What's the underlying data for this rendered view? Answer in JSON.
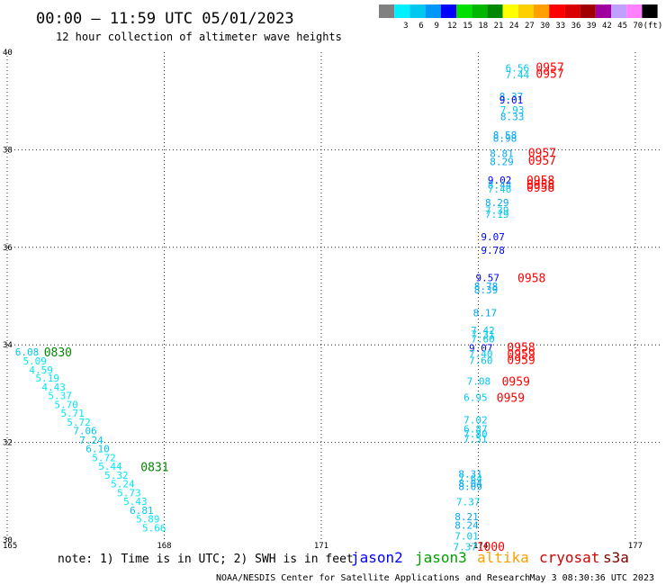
{
  "title": "00:00 – 11:59 UTC 05/01/2023",
  "subtitle": "12 hour collection of altimeter wave heights",
  "note": "note: 1) Time is in UTC; 2) SWH is in feet",
  "credit_left": "NOAA/NESDIS Center for Satellite Applications and Research",
  "credit_right": "May  3 08:30:36 UTC 2023",
  "colorbar": {
    "unit": "(ft)",
    "bins": [
      {
        "color": "#808080",
        "label": ""
      },
      {
        "color": "#00f0ff",
        "label": "3"
      },
      {
        "color": "#00c8f0",
        "label": "6"
      },
      {
        "color": "#0098f8",
        "label": "9"
      },
      {
        "color": "#0000ff",
        "label": "12"
      },
      {
        "color": "#00e000",
        "label": "15"
      },
      {
        "color": "#00b800",
        "label": "18"
      },
      {
        "color": "#008800",
        "label": "21"
      },
      {
        "color": "#ffff00",
        "label": "24"
      },
      {
        "color": "#ffd000",
        "label": "27"
      },
      {
        "color": "#ffa000",
        "label": "30"
      },
      {
        "color": "#ff0000",
        "label": "33"
      },
      {
        "color": "#d80000",
        "label": "36"
      },
      {
        "color": "#a00000",
        "label": "39"
      },
      {
        "color": "#a000a0",
        "label": "42"
      },
      {
        "color": "#c0a0ff",
        "label": "45"
      },
      {
        "color": "#ff80ff",
        "label": "70"
      },
      {
        "color": "#000000",
        "label": ""
      }
    ]
  },
  "satellites": [
    {
      "name": "jason2",
      "color": "#0000ff"
    },
    {
      "name": "jason3",
      "color": "#00a000"
    },
    {
      "name": "altika",
      "color": "#ffa000"
    },
    {
      "name": "cryosat",
      "color": "#d00000"
    },
    {
      "name": "s3a",
      "color": "#800000"
    }
  ],
  "chart_data": {
    "type": "scatter",
    "title": "00:00 – 11:59 UTC 05/01/2023",
    "subtitle": "12 hour collection of altimeter wave heights",
    "xlim": [
      165,
      177.5
    ],
    "ylim": [
      30,
      40
    ],
    "grid": true,
    "x_ticks": [
      {
        "v": 165,
        "label": "165"
      },
      {
        "v": 168,
        "label": "168"
      },
      {
        "v": 171,
        "label": "171"
      },
      {
        "v": 174,
        "label": "-174"
      },
      {
        "v": 177,
        "label": "177"
      }
    ],
    "y_ticks": [
      {
        "v": 30,
        "label": "30"
      },
      {
        "v": 32,
        "label": "32"
      },
      {
        "v": 34,
        "label": "34"
      },
      {
        "v": 36,
        "label": "36"
      },
      {
        "v": 38,
        "label": "38"
      },
      {
        "v": 40,
        "label": "40"
      }
    ],
    "wave_heights": [
      {
        "lon": 165.15,
        "lat": 33.86,
        "swh": "6.08",
        "color": "#00c8f0"
      },
      {
        "lon": 165.3,
        "lat": 33.67,
        "swh": "5.09",
        "color": "#00e8f8"
      },
      {
        "lon": 165.42,
        "lat": 33.49,
        "swh": "4.59",
        "color": "#00e8f8"
      },
      {
        "lon": 165.54,
        "lat": 33.32,
        "swh": "5.19",
        "color": "#00e8f8"
      },
      {
        "lon": 165.66,
        "lat": 33.14,
        "swh": "4.43",
        "color": "#00e8f8"
      },
      {
        "lon": 165.78,
        "lat": 32.96,
        "swh": "5.37",
        "color": "#00e8f8"
      },
      {
        "lon": 165.9,
        "lat": 32.78,
        "swh": "5.70",
        "color": "#00e8f8"
      },
      {
        "lon": 166.02,
        "lat": 32.6,
        "swh": "5.71",
        "color": "#00e8f8"
      },
      {
        "lon": 166.14,
        "lat": 32.42,
        "swh": "5.72",
        "color": "#00e8f8"
      },
      {
        "lon": 166.26,
        "lat": 32.24,
        "swh": "7.06",
        "color": "#00c8f0"
      },
      {
        "lon": 166.38,
        "lat": 32.05,
        "swh": "7.24",
        "color": "#00c8f0"
      },
      {
        "lon": 166.5,
        "lat": 31.87,
        "swh": "6.10",
        "color": "#00c8f0"
      },
      {
        "lon": 166.62,
        "lat": 31.69,
        "swh": "5.72",
        "color": "#00e8f8"
      },
      {
        "lon": 166.74,
        "lat": 31.51,
        "swh": "5.44",
        "color": "#00e8f8"
      },
      {
        "lon": 166.86,
        "lat": 31.33,
        "swh": "5.32",
        "color": "#00e8f8"
      },
      {
        "lon": 166.98,
        "lat": 31.15,
        "swh": "5.24",
        "color": "#00e8f8"
      },
      {
        "lon": 167.1,
        "lat": 30.97,
        "swh": "5.73",
        "color": "#00e8f8"
      },
      {
        "lon": 167.22,
        "lat": 30.79,
        "swh": "5.43",
        "color": "#00e8f8"
      },
      {
        "lon": 167.34,
        "lat": 30.61,
        "swh": "6.81",
        "color": "#00c8f0"
      },
      {
        "lon": 167.46,
        "lat": 30.43,
        "swh": "5.89",
        "color": "#00e8f8"
      },
      {
        "lon": 167.58,
        "lat": 30.25,
        "swh": "5.66",
        "color": "#00e8f8"
      },
      {
        "lon": 174.52,
        "lat": 39.68,
        "swh": "6.56",
        "color": "#00c8f0"
      },
      {
        "lon": 174.52,
        "lat": 39.54,
        "swh": "7.44",
        "color": "#00c8f0"
      },
      {
        "lon": 174.4,
        "lat": 39.1,
        "swh": "8.37",
        "color": "#00a8f8"
      },
      {
        "lon": 174.4,
        "lat": 39.02,
        "swh": "9.01",
        "color": "#0000ff"
      },
      {
        "lon": 174.42,
        "lat": 38.82,
        "swh": "7.93",
        "color": "#00c8f0"
      },
      {
        "lon": 174.42,
        "lat": 38.68,
        "swh": "8.33",
        "color": "#00a8f8"
      },
      {
        "lon": 174.28,
        "lat": 38.3,
        "swh": "8.58",
        "color": "#00a8f8"
      },
      {
        "lon": 174.28,
        "lat": 38.24,
        "swh": "8.98",
        "color": "#00a8f8"
      },
      {
        "lon": 174.22,
        "lat": 37.92,
        "swh": "8.81",
        "color": "#00a8f8"
      },
      {
        "lon": 174.22,
        "lat": 37.76,
        "swh": "8.29",
        "color": "#00a8f8"
      },
      {
        "lon": 174.18,
        "lat": 37.38,
        "swh": "9.02",
        "color": "#0000ff"
      },
      {
        "lon": 174.18,
        "lat": 37.28,
        "swh": "8.44",
        "color": "#00a8f8"
      },
      {
        "lon": 174.18,
        "lat": 37.2,
        "swh": "7.46",
        "color": "#00c8f0"
      },
      {
        "lon": 174.13,
        "lat": 36.92,
        "swh": "8.29",
        "color": "#00a8f8"
      },
      {
        "lon": 174.13,
        "lat": 36.76,
        "swh": "7.39",
        "color": "#00c8f0"
      },
      {
        "lon": 174.13,
        "lat": 36.68,
        "swh": "7.19",
        "color": "#00c8f0"
      },
      {
        "lon": 174.05,
        "lat": 36.22,
        "swh": "9.07",
        "color": "#0000ff"
      },
      {
        "lon": 174.05,
        "lat": 35.94,
        "swh": "9.78",
        "color": "#0000ff"
      },
      {
        "lon": 173.95,
        "lat": 35.38,
        "swh": "9.57",
        "color": "#0000ff"
      },
      {
        "lon": 173.92,
        "lat": 35.2,
        "swh": "8.78",
        "color": "#00a8f8"
      },
      {
        "lon": 173.92,
        "lat": 35.13,
        "swh": "8.39",
        "color": "#00a8f8"
      },
      {
        "lon": 173.9,
        "lat": 34.66,
        "swh": "8.17",
        "color": "#00a8f8"
      },
      {
        "lon": 173.86,
        "lat": 34.3,
        "swh": "7.42",
        "color": "#00c8f0"
      },
      {
        "lon": 173.86,
        "lat": 34.22,
        "swh": "7.31",
        "color": "#00c8f0"
      },
      {
        "lon": 173.86,
        "lat": 34.12,
        "swh": "7.60",
        "color": "#00c8f0"
      },
      {
        "lon": 173.82,
        "lat": 33.94,
        "swh": "9.07",
        "color": "#0000ff"
      },
      {
        "lon": 173.82,
        "lat": 33.82,
        "swh": "7.40",
        "color": "#00c8f0"
      },
      {
        "lon": 173.82,
        "lat": 33.68,
        "swh": "7.60",
        "color": "#00c8f0"
      },
      {
        "lon": 173.78,
        "lat": 33.26,
        "swh": "7.08",
        "color": "#00c8f0"
      },
      {
        "lon": 173.72,
        "lat": 32.92,
        "swh": "6.95",
        "color": "#00c8f0"
      },
      {
        "lon": 173.72,
        "lat": 32.46,
        "swh": "7.02",
        "color": "#00c8f0"
      },
      {
        "lon": 173.72,
        "lat": 32.28,
        "swh": "6.87",
        "color": "#00c8f0"
      },
      {
        "lon": 173.72,
        "lat": 32.18,
        "swh": "7.80",
        "color": "#00c8f0"
      },
      {
        "lon": 173.72,
        "lat": 32.08,
        "swh": "7.51",
        "color": "#00c8f0"
      },
      {
        "lon": 173.62,
        "lat": 31.36,
        "swh": "8.31",
        "color": "#00a8f8"
      },
      {
        "lon": 173.62,
        "lat": 31.26,
        "swh": "7.64",
        "color": "#00c8f0"
      },
      {
        "lon": 173.62,
        "lat": 31.16,
        "swh": "8.04",
        "color": "#00a8f8"
      },
      {
        "lon": 173.62,
        "lat": 31.1,
        "swh": "8.09",
        "color": "#00a8f8"
      },
      {
        "lon": 173.58,
        "lat": 30.78,
        "swh": "7.37",
        "color": "#00c8f0"
      },
      {
        "lon": 173.55,
        "lat": 30.48,
        "swh": "8.21",
        "color": "#00a8f8"
      },
      {
        "lon": 173.55,
        "lat": 30.3,
        "swh": "8.24",
        "color": "#00a8f8"
      },
      {
        "lon": 173.55,
        "lat": 30.08,
        "swh": "7.01",
        "color": "#00c8f0"
      },
      {
        "lon": 173.52,
        "lat": 29.86,
        "swh": "7.37",
        "color": "#00c8f0"
      }
    ],
    "pass_times": [
      {
        "lon": 165.7,
        "lat": 33.86,
        "time": "0830",
        "color": "#008800"
      },
      {
        "lon": 167.55,
        "lat": 31.5,
        "time": "0831",
        "color": "#008800"
      },
      {
        "lon": 175.1,
        "lat": 39.7,
        "time": "0957",
        "color": "#ff0000"
      },
      {
        "lon": 175.1,
        "lat": 39.57,
        "time": "0957",
        "color": "#ff0000"
      },
      {
        "lon": 174.95,
        "lat": 37.94,
        "time": "0957",
        "color": "#ff0000"
      },
      {
        "lon": 174.95,
        "lat": 37.79,
        "time": "0957",
        "color": "#ff0000"
      },
      {
        "lon": 174.92,
        "lat": 37.38,
        "time": "0958",
        "color": "#ff0000"
      },
      {
        "lon": 174.92,
        "lat": 37.29,
        "time": "0958",
        "color": "#ff0000"
      },
      {
        "lon": 174.92,
        "lat": 37.23,
        "time": "0958",
        "color": "#ff0000"
      },
      {
        "lon": 174.75,
        "lat": 35.38,
        "time": "0958",
        "color": "#ff0000"
      },
      {
        "lon": 174.55,
        "lat": 33.96,
        "time": "0958",
        "color": "#ff0000"
      },
      {
        "lon": 174.55,
        "lat": 33.82,
        "time": "0959",
        "color": "#ff0000"
      },
      {
        "lon": 174.55,
        "lat": 33.7,
        "time": "0959",
        "color": "#ff0000"
      },
      {
        "lon": 174.45,
        "lat": 33.26,
        "time": "0959",
        "color": "#ff0000"
      },
      {
        "lon": 174.35,
        "lat": 32.92,
        "time": "0959",
        "color": "#ff0000"
      },
      {
        "lon": 173.97,
        "lat": 29.87,
        "time": "1000",
        "color": "#ff0000"
      }
    ]
  }
}
